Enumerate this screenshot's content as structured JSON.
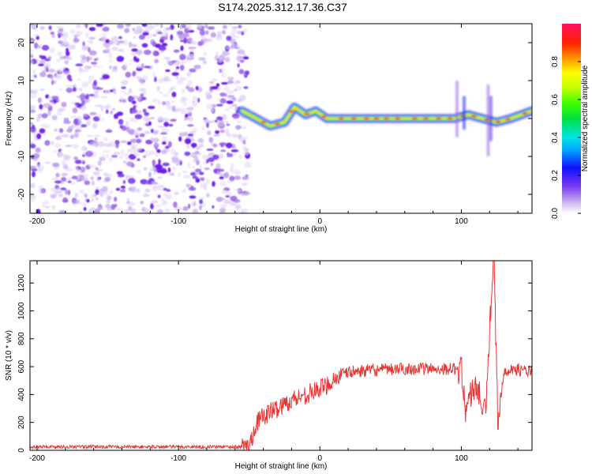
{
  "title": "S174.2025.312.17.36.C37",
  "chart_data": [
    {
      "type": "heatmap",
      "xlabel": "Height of straight line (km)",
      "ylabel": "Frequency (Hz)",
      "xlim": [
        -205,
        150
      ],
      "ylim": [
        -25,
        25
      ],
      "xticks": [
        -200,
        -100,
        0,
        100
      ],
      "yticks": [
        -20,
        -10,
        0,
        10,
        20
      ],
      "description_series": [
        {
          "name": "noise region",
          "x_range": [
            -205,
            -53
          ],
          "frequency_range": [
            -25,
            25
          ]
        },
        {
          "name": "signal trace",
          "x": [
            -55,
            -45,
            -35,
            -25,
            -18,
            -10,
            -3,
            5,
            15,
            30,
            50,
            70,
            95,
            105,
            115,
            125,
            135,
            150
          ],
          "frequency": [
            2,
            0,
            -2,
            -1,
            3,
            1,
            2,
            0,
            0,
            0,
            0,
            0,
            0,
            1,
            0,
            -1,
            0,
            2
          ]
        }
      ],
      "colorbar": {
        "label": "Normalized spectral amplitude",
        "range": [
          0.0,
          1.0
        ],
        "ticks": [
          "0.0",
          "0.2",
          "0.4",
          "0.6",
          "0.8"
        ],
        "ticks_values": [
          0.0,
          0.2,
          0.4,
          0.6,
          0.8
        ]
      }
    },
    {
      "type": "line",
      "xlabel": "Height of straight line (km)",
      "ylabel": "SNR (10 * v/v)",
      "xlim": [
        -205,
        150
      ],
      "ylim": [
        0,
        1360
      ],
      "xticks": [
        -200,
        -100,
        0,
        100
      ],
      "yticks": [
        0,
        200,
        400,
        600,
        800,
        1000,
        1200
      ],
      "series": [
        {
          "name": "SNR",
          "color": "#e53935",
          "x": [
            -205,
            -150,
            -100,
            -60,
            -50,
            -45,
            -40,
            -35,
            -30,
            -25,
            -20,
            -15,
            -10,
            -5,
            0,
            5,
            10,
            15,
            20,
            30,
            40,
            50,
            60,
            70,
            80,
            90,
            100,
            103,
            110,
            117,
            120,
            123,
            126,
            130,
            140,
            150
          ],
          "y": [
            25,
            25,
            25,
            25,
            25,
            200,
            240,
            280,
            300,
            330,
            360,
            380,
            400,
            420,
            440,
            470,
            510,
            540,
            560,
            570,
            575,
            580,
            585,
            585,
            585,
            585,
            580,
            300,
            480,
            250,
            850,
            1360,
            150,
            580,
            580,
            560
          ]
        }
      ]
    }
  ]
}
